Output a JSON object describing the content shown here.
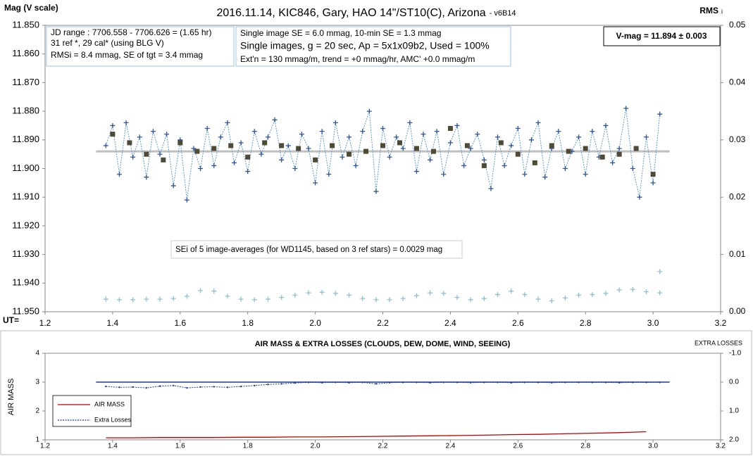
{
  "chart_data": [
    {
      "type": "line",
      "title": "2016.11.14,  KIC846, Gary, HAO 14\"/ST10(C), Arizona",
      "version": "- v6B14",
      "ylabel": "Mag (V scale)",
      "y2label": "RMS",
      "y2label_sub": "i",
      "xlabel": "UT=",
      "jd_box": [
        "JD range  : 7706.558 - 7706.626  = (1.65 hr)",
        "31 ref *, 29 cal* (using BLG V)",
        "RMSi = 8.4 mmag, SE of tgt = 3.4 mmag"
      ],
      "image_box": [
        "Single image SE = 6.0 mmag, 10-min SE = 1.3 mmag",
        "Single images, g = 20 sec, Ap = 5x1x09b2, Used = 100%",
        "Ext'n = 130 mmag/m, trend = +0 mmag/hr, AMC' +0.0 mmag/m"
      ],
      "vmag_label": "V-mag  = 11.894 ± 0.003",
      "sei_note": "SEi of 5 image-averages (for WD1145, based on 3 ref stars) = 0.0029 mag",
      "xlim": [
        1.2,
        3.2
      ],
      "xticks": [
        1.2,
        1.4,
        1.6,
        1.8,
        {
          "value": 2,
          "label": "2.0"
        },
        2.2,
        2.4,
        2.6,
        2.8,
        {
          "value": 3,
          "label": "3.0"
        },
        3.2
      ],
      "ylim": [
        11.85,
        11.95
      ],
      "y_inverted": true,
      "yticks": [
        {
          "value": 11.85,
          "label": "11.850"
        },
        {
          "value": 11.86,
          "label": "11.860"
        },
        {
          "value": 11.87,
          "label": "11.870"
        },
        {
          "value": 11.88,
          "label": "11.880"
        },
        {
          "value": 11.89,
          "label": "11.890"
        },
        {
          "value": 11.9,
          "label": "11.900"
        },
        {
          "value": 11.91,
          "label": "11.910"
        },
        {
          "value": 11.92,
          "label": "11.920"
        },
        {
          "value": 11.93,
          "label": "11.930"
        },
        {
          "value": 11.94,
          "label": "11.940"
        },
        {
          "value": 11.95,
          "label": "11.950"
        }
      ],
      "y2lim": [
        0,
        0.05
      ],
      "y2ticks": [
        0.05,
        0.04,
        0.03,
        0.02,
        0.01,
        {
          "value": 0,
          "label": "0.00"
        }
      ],
      "reference_line": {
        "value": 11.894,
        "color": "#bfbfbf"
      },
      "series": [
        {
          "color": "#2f5597",
          "line_color": "#5b9bd5",
          "line": "dotted",
          "marker": "plus",
          "x": [
            1.38,
            1.4,
            1.42,
            1.44,
            1.46,
            1.48,
            1.5,
            1.52,
            1.54,
            1.56,
            1.58,
            1.6,
            1.62,
            1.64,
            1.66,
            1.68,
            1.7,
            1.72,
            1.74,
            1.76,
            1.78,
            1.8,
            1.82,
            1.84,
            1.86,
            1.88,
            1.9,
            1.92,
            1.94,
            1.96,
            1.98,
            2.0,
            2.02,
            2.04,
            2.06,
            2.08,
            2.1,
            2.12,
            2.14,
            2.16,
            2.18,
            2.2,
            2.22,
            2.24,
            2.26,
            2.28,
            2.3,
            2.32,
            2.34,
            2.36,
            2.38,
            2.4,
            2.42,
            2.44,
            2.46,
            2.48,
            2.5,
            2.52,
            2.54,
            2.56,
            2.58,
            2.6,
            2.62,
            2.64,
            2.66,
            2.68,
            2.7,
            2.72,
            2.74,
            2.76,
            2.78,
            2.8,
            2.82,
            2.84,
            2.86,
            2.88,
            2.9,
            2.92,
            2.94,
            2.96,
            2.98,
            3.0,
            3.02
          ],
          "values": [
            11.892,
            11.885,
            11.902,
            11.884,
            11.896,
            11.889,
            11.903,
            11.887,
            11.895,
            11.888,
            11.906,
            11.89,
            11.911,
            11.893,
            11.9,
            11.886,
            11.899,
            11.889,
            11.884,
            11.898,
            11.891,
            11.901,
            11.887,
            11.895,
            11.889,
            11.883,
            11.897,
            11.892,
            11.9,
            11.888,
            11.893,
            11.905,
            11.887,
            11.902,
            11.884,
            11.896,
            11.889,
            11.899,
            11.887,
            11.88,
            11.908,
            11.886,
            11.896,
            11.889,
            11.893,
            11.884,
            11.901,
            11.888,
            11.897,
            11.887,
            11.902,
            11.891,
            11.885,
            11.899,
            11.893,
            11.888,
            11.897,
            11.907,
            11.889,
            11.899,
            11.892,
            11.886,
            11.902,
            11.89,
            11.884,
            11.903,
            11.893,
            11.887,
            11.9,
            11.894,
            11.889,
            11.902,
            11.887,
            11.896,
            11.885,
            11.898,
            11.893,
            11.879,
            11.9,
            11.91,
            11.889,
            11.905,
            11.881
          ]
        },
        {
          "color": "#4f4a36",
          "line": "none",
          "marker": "square",
          "x": [
            1.4,
            1.45,
            1.5,
            1.55,
            1.6,
            1.65,
            1.7,
            1.75,
            1.8,
            1.85,
            1.9,
            1.95,
            2.0,
            2.05,
            2.1,
            2.15,
            2.2,
            2.25,
            2.3,
            2.35,
            2.4,
            2.45,
            2.5,
            2.55,
            2.6,
            2.65,
            2.7,
            2.75,
            2.8,
            2.85,
            2.9,
            2.95,
            3.0
          ],
          "values": [
            11.888,
            11.891,
            11.895,
            11.897,
            11.891,
            11.894,
            11.893,
            11.892,
            11.896,
            11.891,
            11.892,
            11.893,
            11.897,
            11.892,
            11.895,
            11.894,
            11.892,
            11.891,
            11.893,
            11.894,
            11.886,
            11.892,
            11.899,
            11.891,
            11.895,
            11.898,
            11.892,
            11.894,
            11.893,
            11.896,
            11.895,
            11.893,
            11.902
          ]
        },
        {
          "color": "#8fbfd4",
          "line": "none",
          "marker": "plus",
          "axis": "y2",
          "x": [
            1.38,
            1.42,
            1.46,
            1.5,
            1.54,
            1.58,
            1.62,
            1.66,
            1.7,
            1.74,
            1.78,
            1.82,
            1.86,
            1.9,
            1.94,
            1.98,
            2.02,
            2.06,
            2.1,
            2.14,
            2.18,
            2.22,
            2.26,
            2.3,
            2.34,
            2.38,
            2.42,
            2.46,
            2.5,
            2.54,
            2.58,
            2.62,
            2.66,
            2.7,
            2.74,
            2.78,
            2.82,
            2.86,
            2.9,
            2.94,
            2.98,
            3.02
          ],
          "values": [
            0.0022,
            0.0021,
            0.0021,
            0.0022,
            0.0022,
            0.0023,
            0.0027,
            0.0037,
            0.0036,
            0.0027,
            0.0022,
            0.0021,
            0.0022,
            0.0025,
            0.0029,
            0.0033,
            0.0034,
            0.0032,
            0.0029,
            0.0023,
            0.0021,
            0.0021,
            0.0023,
            0.0028,
            0.0033,
            0.0032,
            0.0025,
            0.0021,
            0.0023,
            0.003,
            0.0036,
            0.003,
            0.0022,
            0.0019,
            0.0024,
            0.0029,
            0.003,
            0.0032,
            0.0038,
            0.0039,
            0.0035,
            0.0033
          ]
        },
        {
          "color": "#8fbfd4",
          "line": "none",
          "marker": "plus",
          "axis": "y2",
          "x": [
            3.02
          ],
          "values": [
            0.007
          ]
        }
      ]
    },
    {
      "type": "line",
      "title": "AIR MASS & EXTRA LOSSES (CLOUDS, DEW, DOME, WIND, SEEING)",
      "ylabel": "AIR MASS",
      "y2label": "EXTRA LOSSES",
      "xlim": [
        1.2,
        3.2
      ],
      "xticks": [
        1.2,
        1.4,
        1.6,
        1.8,
        {
          "value": 2,
          "label": "2.0"
        },
        2.2,
        2.4,
        2.6,
        2.8,
        {
          "value": 3,
          "label": "3.0"
        },
        3.2
      ],
      "ylim": [
        1,
        4
      ],
      "yticks": [
        1,
        2,
        3,
        4
      ],
      "y2lim": [
        -1,
        2
      ],
      "y2_inverted": true,
      "y2ticks": [
        {
          "value": -1,
          "label": "-1.0"
        },
        {
          "value": 0,
          "label": "0.0"
        },
        {
          "value": 1,
          "label": "1.0"
        },
        {
          "value": 2,
          "label": "2.0"
        }
      ],
      "reference_line": {
        "value": 0,
        "axis": "y2",
        "color": "#1f3c9c"
      },
      "legend": "bottom-left",
      "series": [
        {
          "name": "AIR MASS",
          "color": "#c00000",
          "line": "solid",
          "marker": "none",
          "x": [
            1.38,
            1.46,
            1.54,
            1.62,
            1.7,
            1.78,
            1.86,
            1.94,
            2.02,
            2.1,
            2.18,
            2.26,
            2.34,
            2.42,
            2.5,
            2.58,
            2.66,
            2.74,
            2.82,
            2.9,
            2.98
          ],
          "values": [
            1.07,
            1.07,
            1.08,
            1.08,
            1.08,
            1.09,
            1.09,
            1.1,
            1.1,
            1.11,
            1.12,
            1.13,
            1.14,
            1.15,
            1.16,
            1.18,
            1.19,
            1.21,
            1.23,
            1.25,
            1.28
          ]
        },
        {
          "name": "Extra Losses",
          "color": "#1f3c9c",
          "line": "dotted",
          "marker": "dot",
          "axis": "y2",
          "x": [
            1.38,
            1.42,
            1.46,
            1.5,
            1.54,
            1.58,
            1.62,
            1.66,
            1.7,
            1.74,
            1.78,
            1.82,
            1.86,
            1.9,
            1.94,
            1.98,
            2.02,
            2.06,
            2.1,
            2.14,
            2.18,
            2.22,
            2.26,
            2.3,
            2.34,
            2.38,
            2.42,
            2.46,
            2.5,
            2.54,
            2.58,
            2.62,
            2.66,
            2.7,
            2.74,
            2.78,
            2.82,
            2.86,
            2.9,
            2.94,
            2.98,
            3.02
          ],
          "values": [
            0.15,
            0.18,
            0.17,
            0.2,
            0.14,
            0.12,
            0.2,
            0.17,
            0.16,
            0.18,
            0.15,
            0.12,
            0.08,
            0.06,
            0.03,
            0.01,
            0.02,
            0.01,
            0.02,
            0.01,
            0.06,
            0.02,
            0.01,
            0.01,
            0.02,
            0.01,
            0.01,
            0.02,
            0.01,
            0.01,
            0.02,
            0.01,
            0.01,
            0.02,
            0.01,
            0.01,
            0.01,
            0.01,
            0.02,
            0.01,
            0.01,
            0.01
          ]
        }
      ]
    }
  ]
}
